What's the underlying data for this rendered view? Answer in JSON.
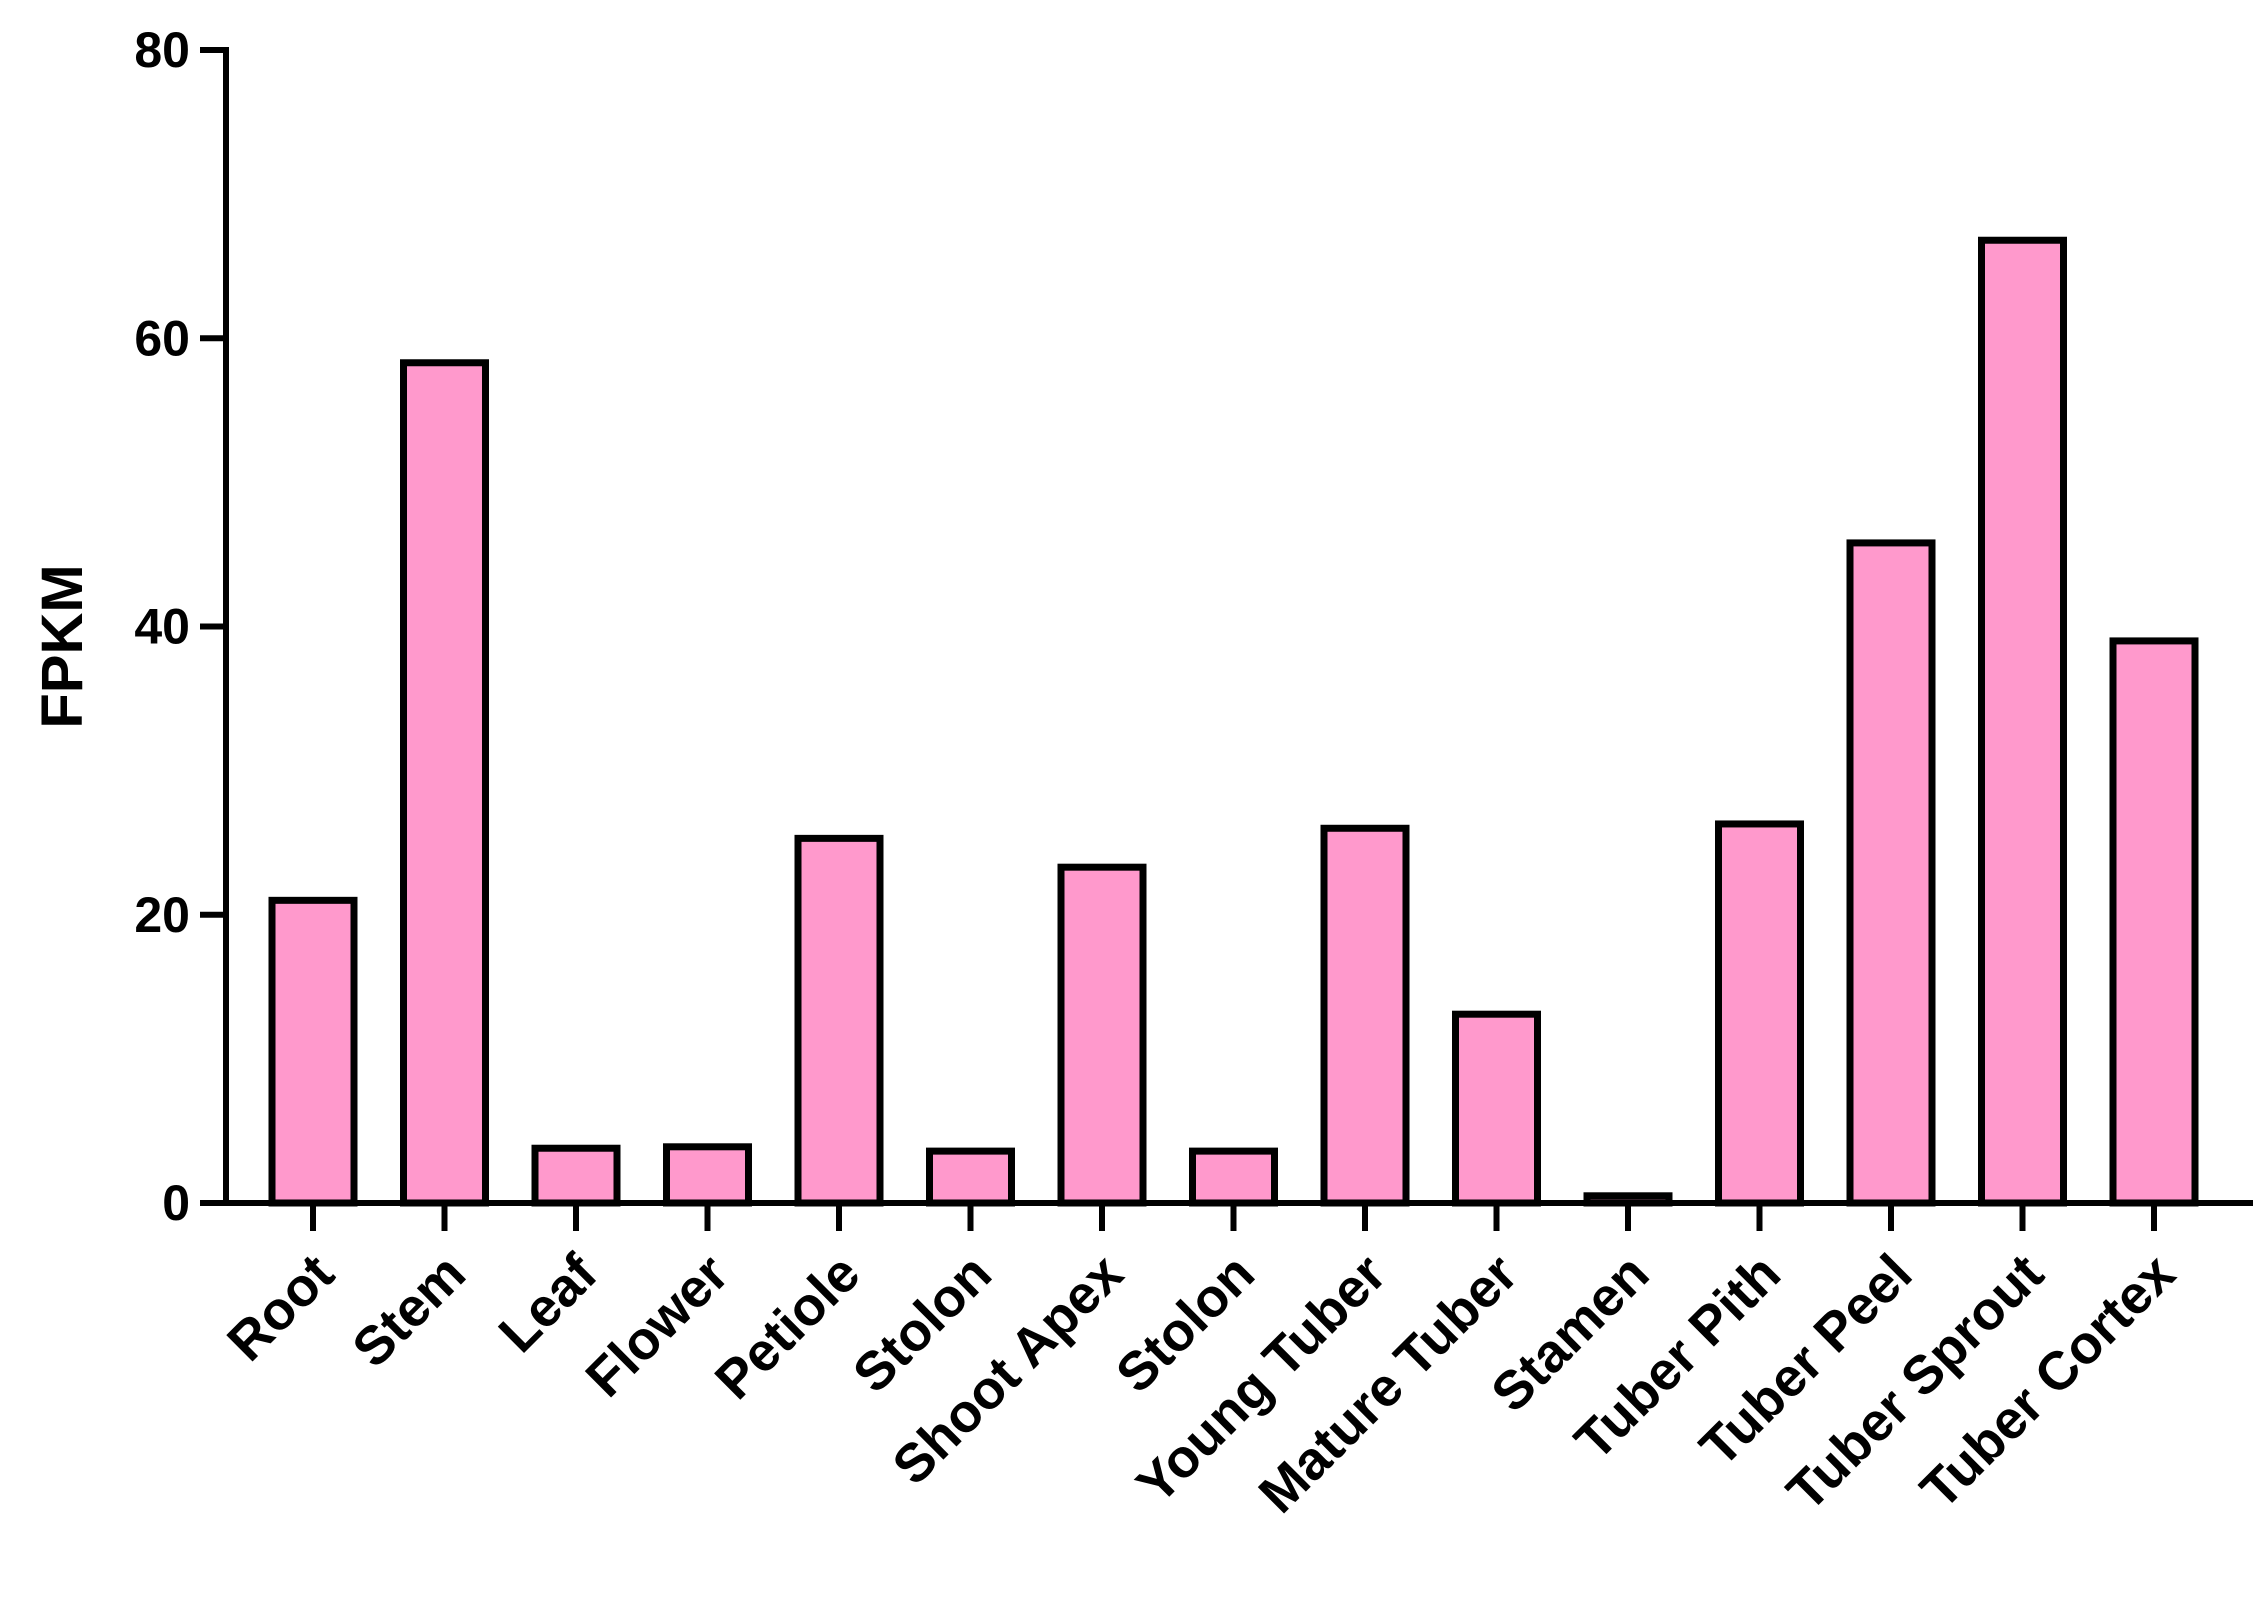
{
  "chart_data": {
    "type": "bar",
    "title": "",
    "xlabel": "",
    "ylabel": "FPKM",
    "ylim": [
      0,
      80
    ],
    "yticks": [
      0,
      20,
      40,
      60,
      80
    ],
    "grid": false,
    "bar_color": "#ff99cc",
    "categories": [
      "Root",
      "Stem",
      "Leaf",
      "Flower",
      "Petiole",
      "Stolon",
      "Shoot Apex",
      "Stolon",
      "Young Tuber",
      "Mature Tuber",
      "Stamen",
      "Tuber Pith",
      "Tuber Peel",
      "Tuber Sprout",
      "Tuber Cortex"
    ],
    "values": [
      21.0,
      58.3,
      3.8,
      3.9,
      25.3,
      3.6,
      23.3,
      3.6,
      26.0,
      13.1,
      0.5,
      26.3,
      45.8,
      66.8,
      39.0
    ]
  }
}
